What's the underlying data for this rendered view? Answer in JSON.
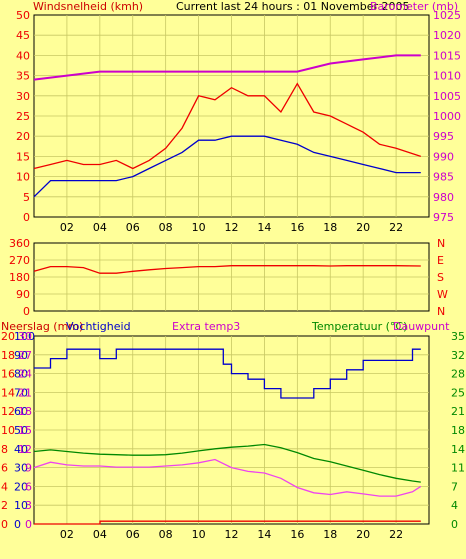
{
  "colors": {
    "background": "#ffff99",
    "axis": "#000000",
    "grid": "#c8c864",
    "red": "#ee0000",
    "blue": "#0000cc",
    "magenta": "#cc00cc",
    "green": "#008800",
    "pink": "#ee44ee"
  },
  "chart_data": [
    {
      "type": "line",
      "title": "Current last 24 hours : 01 November 2005",
      "ylabel_left": "Windsnelheid (kmh)",
      "ylabel_right": "Barometer (mb)",
      "x_ticks": [
        "02",
        "04",
        "06",
        "08",
        "10",
        "12",
        "14",
        "16",
        "18",
        "20",
        "22"
      ],
      "xlim": [
        0,
        24
      ],
      "ylim_left": [
        0,
        50
      ],
      "ylim_right": [
        975,
        1025
      ],
      "y_ticks_left": [
        "0",
        "5",
        "10",
        "15",
        "20",
        "25",
        "30",
        "35",
        "40",
        "45",
        "50"
      ],
      "y_ticks_right": [
        "975",
        "980",
        "985",
        "990",
        "995",
        "1000",
        "1005",
        "1010",
        "1015",
        "1020",
        "1025"
      ],
      "series": [
        {
          "axis": "left",
          "x": [
            0,
            1,
            2,
            3,
            4,
            5,
            6,
            7,
            8,
            9,
            10,
            11,
            12,
            13,
            14,
            15,
            16,
            17,
            18,
            19,
            20,
            21,
            22,
            23.5
          ],
          "values": [
            12,
            13,
            14,
            13,
            13,
            14,
            12,
            14,
            17,
            22,
            30,
            29,
            32,
            30,
            30,
            26,
            33,
            26,
            25,
            23,
            21,
            18,
            17,
            15
          ]
        },
        {
          "axis": "left",
          "x": [
            0,
            1,
            2,
            3,
            4,
            5,
            6,
            7,
            8,
            9,
            10,
            11,
            12,
            13,
            14,
            15,
            16,
            17,
            18,
            19,
            20,
            21,
            22,
            23.5
          ],
          "values": [
            5,
            9,
            9,
            9,
            9,
            9,
            10,
            12,
            14,
            16,
            19,
            19,
            20,
            20,
            20,
            19,
            18,
            16,
            15,
            14,
            13,
            12,
            11,
            11
          ]
        },
        {
          "axis": "right",
          "x": [
            0,
            2,
            4,
            6,
            8,
            10,
            12,
            14,
            16,
            18,
            20,
            22,
            23.5
          ],
          "values": [
            1009,
            1010,
            1011,
            1011,
            1011,
            1011,
            1011,
            1011,
            1011,
            1013,
            1014,
            1015,
            1015
          ]
        }
      ]
    },
    {
      "type": "line",
      "ylabel_right": "N W S E N",
      "ylim": [
        0,
        360
      ],
      "y_ticks_left": [
        "0",
        "90",
        "180",
        "270",
        "360"
      ],
      "compass": [
        "N",
        "W",
        "S",
        "E",
        "N"
      ],
      "series": [
        {
          "x": [
            0,
            1,
            2,
            3,
            4,
            5,
            6,
            7,
            8,
            9,
            10,
            11,
            12,
            13,
            14,
            15,
            16,
            17,
            18,
            19,
            20,
            21,
            22,
            23.5
          ],
          "values": [
            210,
            235,
            235,
            230,
            200,
            200,
            210,
            218,
            225,
            230,
            235,
            235,
            240,
            240,
            240,
            240,
            240,
            240,
            238,
            240,
            240,
            240,
            240,
            238
          ]
        }
      ]
    },
    {
      "type": "line",
      "labels": {
        "neerslag": "Neerslag (mm)",
        "vochtigheid": "Vochtigheid",
        "extra": "Extra temp3",
        "temperatuur": "Temperatuur (°C)",
        "dauwpunt": "Dauwpunt"
      },
      "x_ticks": [
        "02",
        "04",
        "06",
        "08",
        "10",
        "12",
        "14",
        "16",
        "18",
        "20",
        "22"
      ],
      "y_ticks_neerslag": [
        "0",
        "2",
        "4",
        "6",
        "8",
        "10",
        "12",
        "14",
        "16",
        "18",
        "20"
      ],
      "y_ticks_vocht": [
        "0",
        "10",
        "20",
        "30",
        "40",
        "50",
        "60",
        "70",
        "80",
        "90",
        "100"
      ],
      "y_ticks_extra": [
        "0",
        "3",
        "6",
        "9",
        "12",
        "15",
        "18",
        "21",
        "24",
        "27",
        "30"
      ],
      "y_ticks_temp": [
        "0",
        "4",
        "7",
        "11",
        "14",
        "18",
        "21",
        "25",
        "28",
        "32",
        "35"
      ],
      "ylim_vocht": [
        0,
        100
      ],
      "ylim_temp": [
        0,
        35
      ],
      "series": [
        {
          "axis": "vocht",
          "x": [
            0,
            1,
            2,
            3,
            4,
            5,
            6,
            7,
            8,
            9,
            10,
            11,
            11.5,
            12,
            13,
            14,
            15,
            16,
            17,
            18,
            19,
            20,
            21,
            22,
            23,
            23.5
          ],
          "values": [
            83,
            88,
            93,
            93,
            88,
            93,
            93,
            93,
            93,
            93,
            93,
            93,
            85,
            80,
            77,
            72,
            67,
            67,
            72,
            77,
            82,
            87,
            87,
            87,
            93,
            93
          ]
        },
        {
          "axis": "temp",
          "x": [
            0,
            1,
            2,
            3,
            4,
            5,
            6,
            7,
            8,
            9,
            10,
            11,
            12,
            13,
            14,
            15,
            16,
            17,
            18,
            19,
            20,
            21,
            22,
            23,
            23.5
          ],
          "values": [
            13.5,
            13.8,
            13.5,
            13.2,
            13.0,
            12.9,
            12.8,
            12.8,
            12.9,
            13.2,
            13.6,
            14,
            14.3,
            14.5,
            14.8,
            14.2,
            13.3,
            12.2,
            11.6,
            10.8,
            10.0,
            9.2,
            8.5,
            8.0,
            7.8
          ]
        },
        {
          "axis": "temp",
          "x": [
            0,
            1,
            2,
            3,
            4,
            5,
            6,
            7,
            8,
            9,
            10,
            11,
            12,
            13,
            14,
            15,
            16,
            17,
            18,
            19,
            20,
            21,
            22,
            23,
            23.5
          ],
          "values": [
            10.5,
            11.5,
            11.0,
            10.8,
            10.8,
            10.6,
            10.6,
            10.6,
            10.8,
            11.0,
            11.4,
            12,
            10.5,
            9.8,
            9.5,
            8.5,
            6.8,
            5.8,
            5.5,
            6.0,
            5.6,
            5.2,
            5.2,
            6.0,
            7.0
          ]
        },
        {
          "axis": "neerslag",
          "x": [
            0,
            4,
            4.01,
            23.5
          ],
          "values": [
            0,
            0,
            0.3,
            0.3
          ]
        }
      ]
    }
  ]
}
